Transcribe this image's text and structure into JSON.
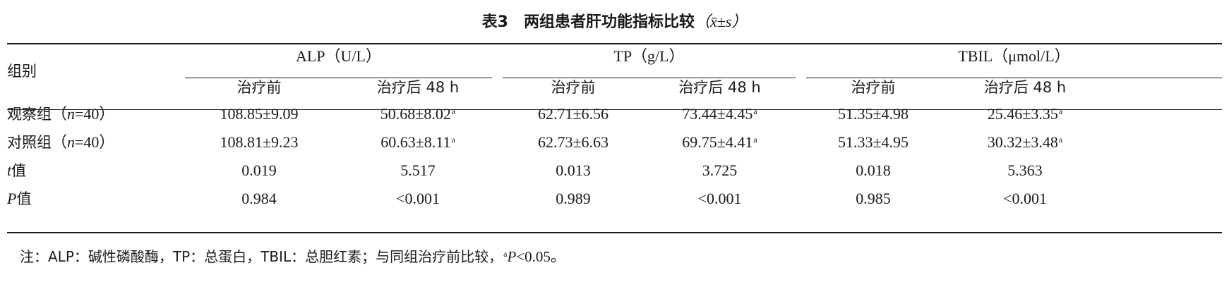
{
  "title": {
    "label": "表3　两组患者肝功能指标比较",
    "stat": "（x̄±s）"
  },
  "header": {
    "group_label": "组别",
    "groups": [
      "ALP（U/L）",
      "TP（g/L）",
      "TBIL（μmol/L）"
    ],
    "before": "治疗前",
    "after": "治疗后 48 h"
  },
  "rows": [
    {
      "label": "观察组",
      "n_var": "n",
      "n_rest": "=40）",
      "label_open": "（",
      "values": [
        "108.85±9.09",
        "50.68±8.02",
        "62.71±6.56",
        "73.44±4.45",
        "51.35±4.98",
        "25.46±3.35"
      ],
      "marks": [
        "",
        "a",
        "",
        "a",
        "",
        "a"
      ]
    },
    {
      "label": "对照组",
      "n_var": "n",
      "n_rest": "=40）",
      "label_open": "（",
      "values": [
        "108.81±9.23",
        "60.63±8.11",
        "62.73±6.63",
        "69.75±4.41",
        "51.33±4.95",
        "30.32±3.48"
      ],
      "marks": [
        "",
        "a",
        "",
        "a",
        "",
        "a"
      ]
    }
  ],
  "t_row": {
    "var": "t",
    "label": "值",
    "values": [
      "0.019",
      "5.517",
      "0.013",
      "3.725",
      "0.018",
      "5.363"
    ]
  },
  "p_row": {
    "var": "P",
    "label": "值",
    "values": [
      "0.984",
      "<0.001",
      "0.989",
      "<0.001",
      "0.985",
      "<0.001"
    ]
  },
  "note": {
    "prefix": "注：ALP：碱性磷酸酶，TP：总蛋白，TBIL：总胆红素；与同组治疗前比较，",
    "mark": "a",
    "p_var": "P",
    "suffix": "<0.05。"
  }
}
